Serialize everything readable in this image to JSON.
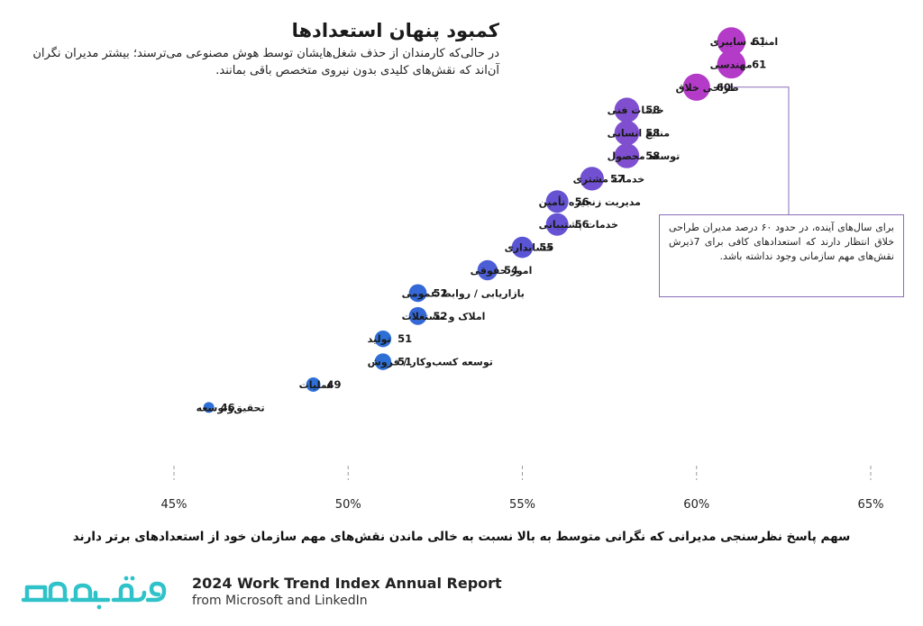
{
  "header": {
    "title": "کمبود پنهان استعدادها",
    "subtitle": "در حالی‌که کارمندان از حذف شغل‌هایشان توسط هوش مصنوعی می‌ترسند؛ بیشتر مدیران نگران آن‌اند که نقش‌های کلیدی بدون نیروی متخصص باقی بمانند."
  },
  "callout": {
    "text": "برای سال‌های آینده، در حدود ۶۰ درصد مدیران طراحی خلاق انتظار دارند که استعدادهای کافی برای 7ذیرش نقش‌های مهم سازمانی وجود نداشته باشد."
  },
  "footer": {
    "x_caption": "سهم پاسخ نظرسنجی مدیرانی که نگرانی متوسط به بالا نسبت به خالی ماندن نقش‌های مهم سازمان خود از استعدادهای برتر دارند",
    "report_title": "2024 Work Trend Index Annual Report",
    "report_sub": "from Microsoft and LinkedIn",
    "logo_text": "تموشیو"
  },
  "colors": {
    "magenta": "#b43ac8",
    "purple": "#7f4fd0",
    "indigo": "#5a55d4",
    "blue": "#2e6fd6",
    "callout_border": "#8a6fb8",
    "gridline": "#9a9a9a",
    "logo": "#2fc3c9"
  },
  "chart_data": {
    "type": "scatter",
    "xlim": [
      45,
      65
    ],
    "x_ticks": [
      "45%",
      "50%",
      "55%",
      "60%",
      "65%"
    ],
    "x_tick_values": [
      45,
      50,
      55,
      60,
      65
    ],
    "grid": false,
    "points": [
      {
        "label": "امنیت سایبری",
        "value": 61,
        "color": "#b43ac8"
      },
      {
        "label": "مهندسی",
        "value": 61,
        "color": "#b43ac8"
      },
      {
        "label": "طراحی خلاق",
        "value": 60,
        "color": "#b43ac8"
      },
      {
        "label": "خدمات فنی",
        "value": 58,
        "color": "#7f4fd0"
      },
      {
        "label": "منابع انسانی",
        "value": 58,
        "color": "#7f4fd0"
      },
      {
        "label": "توسعه محصول",
        "value": 58,
        "color": "#7f4fd0"
      },
      {
        "label": "خدمات مشتری",
        "value": 57,
        "color": "#7150d2"
      },
      {
        "label": "مدیریت زنجیره تأمین",
        "value": 56,
        "color": "#6553d3"
      },
      {
        "label": "خدمات پشتیبانی",
        "value": 56,
        "color": "#6553d3"
      },
      {
        "label": "حسابداری",
        "value": 55,
        "color": "#5a55d4"
      },
      {
        "label": "امور حقوقی",
        "value": 54,
        "color": "#4c5ed5"
      },
      {
        "label": "بازاریابی / روابط عمومی",
        "value": 52,
        "color": "#3468d6"
      },
      {
        "label": "املاک و مستغلات",
        "value": 52,
        "color": "#3468d6"
      },
      {
        "label": "تولید",
        "value": 51,
        "color": "#2e6fd6"
      },
      {
        "label": "توسعه کسب‌وکار / فروش",
        "value": 51,
        "color": "#2e6fd6"
      },
      {
        "label": "عملیات",
        "value": 49,
        "color": "#2e6fd6"
      },
      {
        "label": "تحقیق‌وتوسعه",
        "value": 46,
        "color": "#2e6fd6"
      }
    ]
  }
}
